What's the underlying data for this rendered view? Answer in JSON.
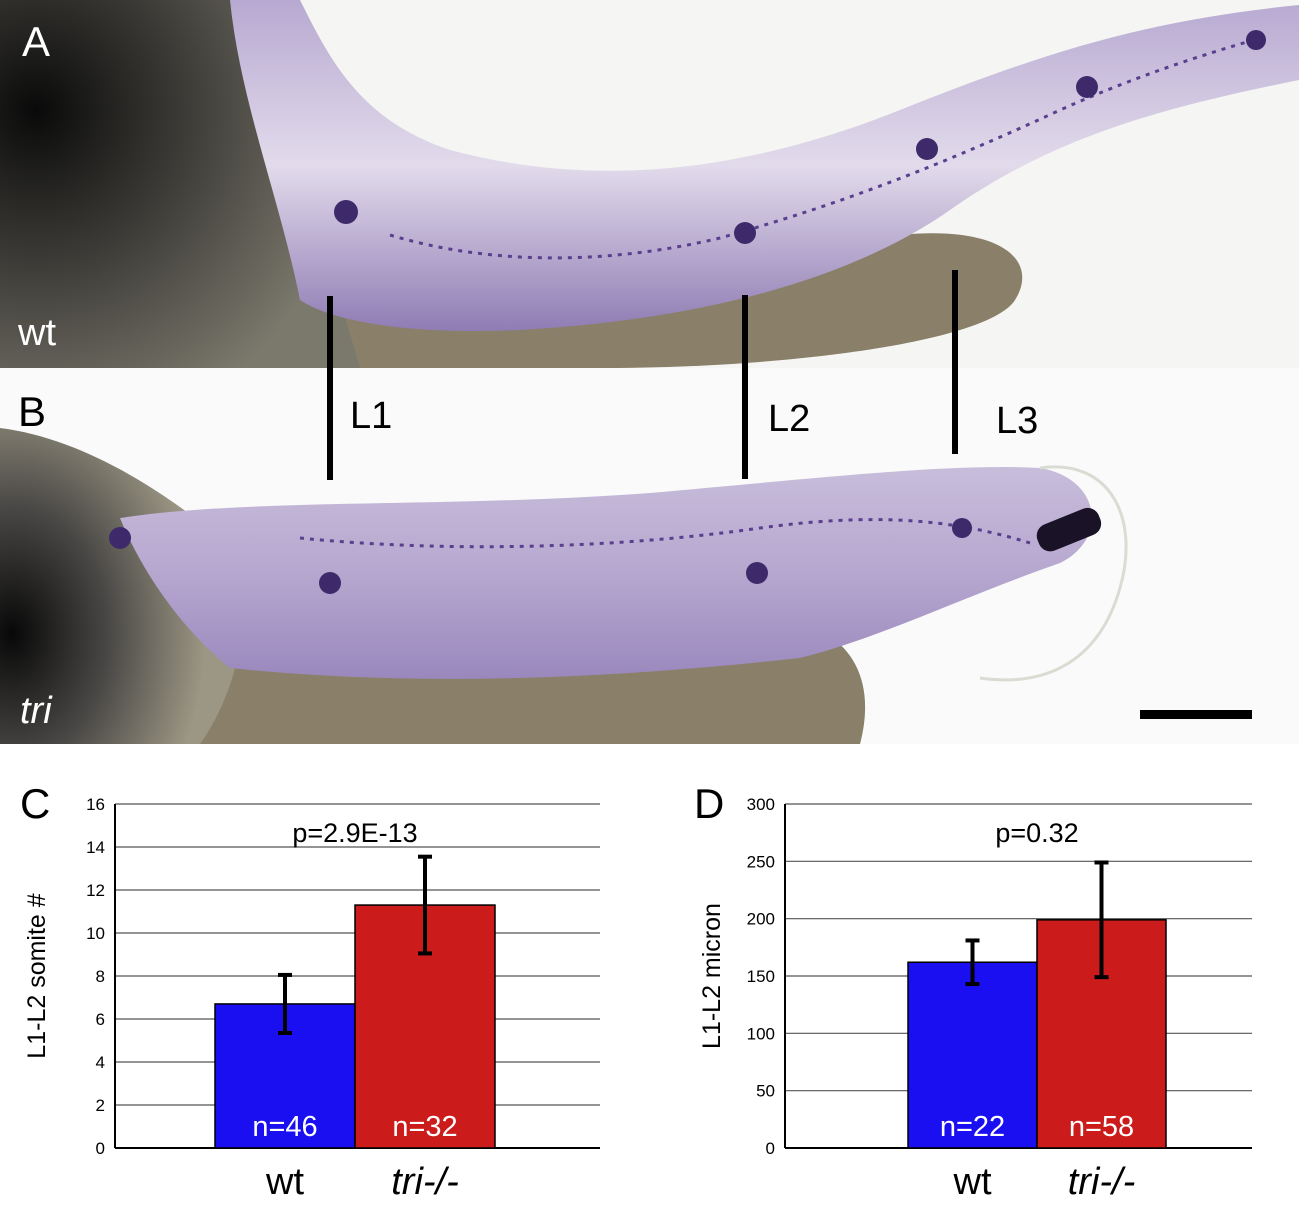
{
  "panels": {
    "a": {
      "letter": "A",
      "genotype": "wt"
    },
    "b": {
      "letter": "B",
      "genotype": "tri"
    },
    "c": {
      "letter": "C"
    },
    "d": {
      "letter": "D"
    }
  },
  "landmarks": [
    "L1",
    "L2",
    "L3"
  ],
  "colors": {
    "wt": "#1a0ff0",
    "tri": "#cc1b1b",
    "stain": "#5a3f8e",
    "yolk": "#8a7f68"
  },
  "chart_data": [
    {
      "type": "bar",
      "panel": "C",
      "categories": [
        "wt",
        "tri-/-"
      ],
      "values": [
        6.7,
        11.3
      ],
      "errors": [
        1.35,
        2.25
      ],
      "bar_labels": [
        "n=46",
        "n=32"
      ],
      "annotation": "p=2.9E-13",
      "ylabel": "L1-L2  somite #",
      "ylim": [
        0,
        16
      ],
      "yticks": [
        "0",
        "2",
        "4",
        "6",
        "8",
        "10",
        "12",
        "14",
        "16"
      ],
      "grid": true,
      "legend": "none"
    },
    {
      "type": "bar",
      "panel": "D",
      "categories": [
        "wt",
        "tri-/-"
      ],
      "values": [
        162,
        199
      ],
      "errors": [
        19,
        50
      ],
      "bar_labels": [
        "n=22",
        "n=58"
      ],
      "annotation": "p=0.32",
      "ylabel": "L1-L2 micron",
      "ylim": [
        0,
        300
      ],
      "yticks": [
        "0",
        "50",
        "100",
        "150",
        "200",
        "250",
        "300"
      ],
      "grid": true,
      "legend": "none"
    }
  ]
}
